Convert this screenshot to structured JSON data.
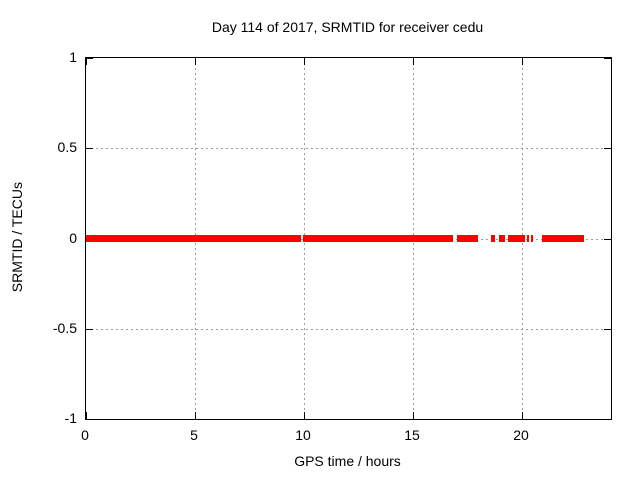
{
  "window": {
    "background": "#ffffff"
  },
  "chart_data": {
    "type": "scatter",
    "title": "Day 114 of 2017, SRMTID for receiver cedu",
    "xlabel": "GPS time / hours",
    "ylabel": "SRMTID / TECUs",
    "xlim": [
      0,
      24.1
    ],
    "ylim": [
      -1,
      1
    ],
    "xticks": [
      0,
      5,
      10,
      15,
      20
    ],
    "xtick_labels": [
      "0",
      "5",
      "10",
      "15",
      "20"
    ],
    "yticks": [
      1,
      0.5,
      0,
      -0.5,
      -1
    ],
    "ytick_labels": [
      "1",
      "0.5",
      "0",
      "-0.5",
      "-1"
    ],
    "grid": true,
    "legend_position": "none",
    "marker": "filled-square",
    "marker_size_px": 7,
    "colors": {
      "axis": "#000000",
      "grid": "#9c9c9c",
      "text": "#000000",
      "series": "#ff0000"
    },
    "series": [
      {
        "name": "SRMTID",
        "color": "#ff0000",
        "y_value": 0,
        "segments_x_hours": [
          [
            0.0,
            9.88
          ],
          [
            9.97,
            16.86
          ],
          [
            17.04,
            18.01
          ],
          [
            18.6,
            18.79
          ],
          [
            18.97,
            19.25
          ],
          [
            19.38,
            20.17
          ],
          [
            20.26,
            20.35
          ],
          [
            20.44,
            20.53
          ],
          [
            20.94,
            22.88
          ]
        ]
      }
    ]
  }
}
